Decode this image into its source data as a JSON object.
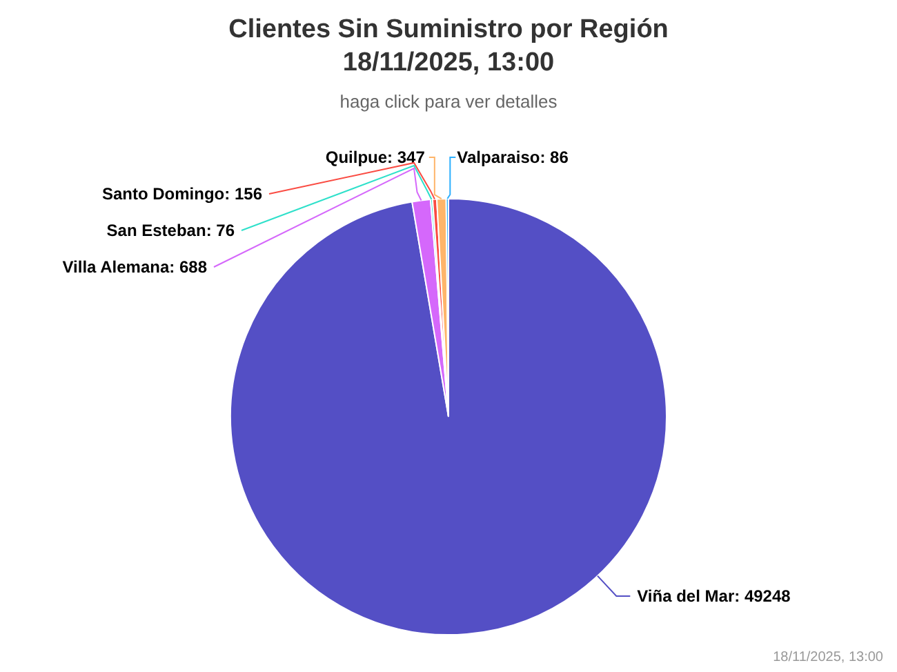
{
  "chart_data": {
    "type": "pie",
    "title": "Clientes Sin Suministro por Región\n18/11/2025, 13:00",
    "subtitle": "haga click para ver detalles",
    "categories": [
      "Viña del Mar",
      "Villa Alemana",
      "San Esteban",
      "Santo Domingo",
      "Quilpue",
      "Valparaiso"
    ],
    "values": [
      49248,
      688,
      76,
      156,
      347,
      86
    ],
    "colors": [
      "#544fc5",
      "#d568fb",
      "#2ee0ca",
      "#fa4b42",
      "#feb56a",
      "#2caffe"
    ],
    "value_labels": [
      ": 49248",
      ": 688",
      ": 76",
      ": 156",
      ": 347",
      ": 86"
    ],
    "annotations": [
      "18/11/2025, 13:00"
    ]
  }
}
